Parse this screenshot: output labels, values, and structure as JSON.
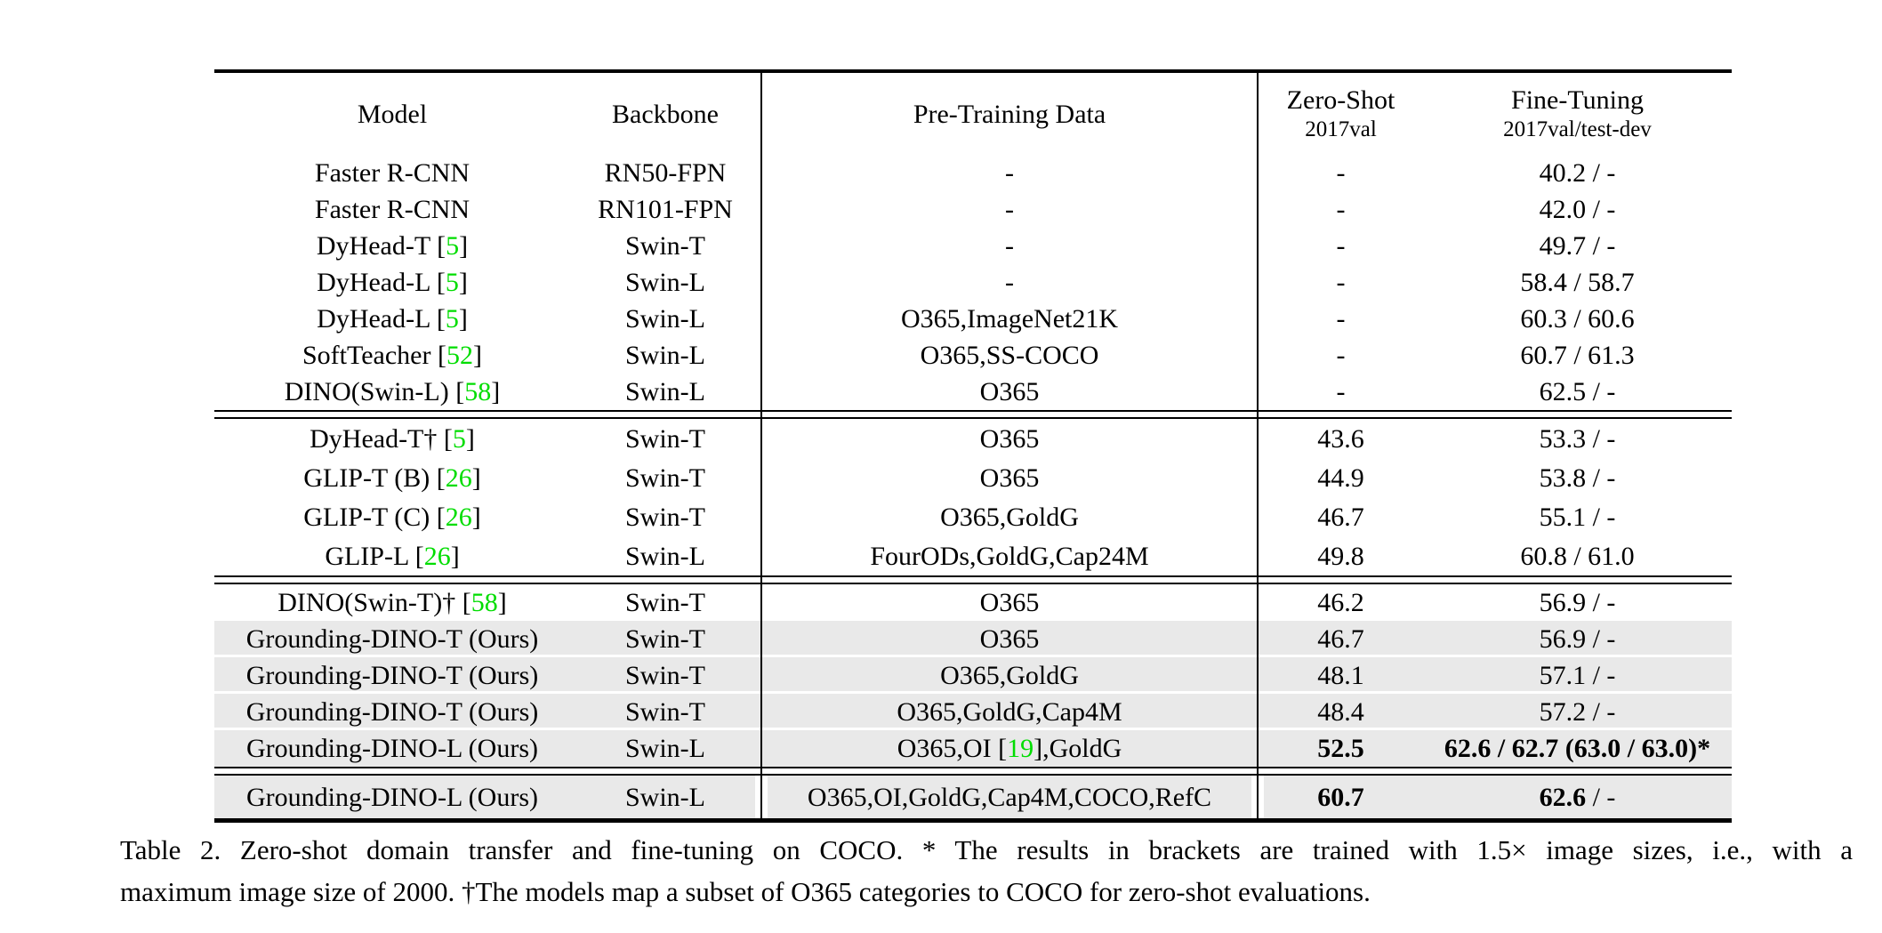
{
  "colors": {
    "citation_green": "#00dd00",
    "row_highlight": "#e9e9e9",
    "text": "#000000",
    "background": "#ffffff"
  },
  "table": {
    "header": {
      "model": "Model",
      "backbone": "Backbone",
      "pretraining": "Pre-Training Data",
      "zeroshot_line1": "Zero-Shot",
      "zeroshot_line2": "2017val",
      "finetuning_line1": "Fine-Tuning",
      "finetuning_line2": "2017val/test-dev"
    },
    "groups": [
      {
        "rows": [
          {
            "model": "Faster R-CNN",
            "backbone": "RN50-FPN",
            "pretrain": "-",
            "zs": "-",
            "ft": "40.2 / -"
          },
          {
            "model": "Faster R-CNN",
            "backbone": "RN101-FPN",
            "pretrain": "-",
            "zs": "-",
            "ft": "42.0 / -"
          },
          {
            "model": "DyHead-T",
            "cite": "5",
            "backbone": "Swin-T",
            "pretrain": "-",
            "zs": "-",
            "ft": "49.7 / -"
          },
          {
            "model": "DyHead-L",
            "cite": "5",
            "backbone": "Swin-L",
            "pretrain": "-",
            "zs": "-",
            "ft": "58.4 / 58.7"
          },
          {
            "model": "DyHead-L",
            "cite": "5",
            "backbone": "Swin-L",
            "pretrain": "O365,ImageNet21K",
            "zs": "-",
            "ft": "60.3 / 60.6"
          },
          {
            "model": "SoftTeacher",
            "cite": "52",
            "backbone": "Swin-L",
            "pretrain": "O365,SS-COCO",
            "zs": "-",
            "ft": "60.7 / 61.3"
          },
          {
            "model": "DINO(Swin-L)",
            "cite": "58",
            "backbone": "Swin-L",
            "pretrain": "O365",
            "zs": "-",
            "ft": "62.5 / -"
          }
        ]
      },
      {
        "rows": [
          {
            "model": "DyHead-T",
            "dagger": true,
            "cite": "5",
            "backbone": "Swin-T",
            "pretrain": "O365",
            "zs": "43.6",
            "ft": "53.3 / -"
          },
          {
            "model": "GLIP-T (B)",
            "cite": "26",
            "backbone": "Swin-T",
            "pretrain": "O365",
            "zs": "44.9",
            "ft": "53.8 / -"
          },
          {
            "model": "GLIP-T (C)",
            "cite": "26",
            "backbone": "Swin-T",
            "pretrain": "O365,GoldG",
            "zs": "46.7",
            "ft": "55.1 / -"
          },
          {
            "model": "GLIP-L",
            "cite": "26",
            "backbone": "Swin-L",
            "pretrain": "FourODs,GoldG,Cap24M",
            "zs": "49.8",
            "ft": "60.8 / 61.0"
          }
        ]
      },
      {
        "rows": [
          {
            "model": "DINO(Swin-T)",
            "dagger": true,
            "cite": "58",
            "backbone": "Swin-T",
            "pretrain": "O365",
            "zs": "46.2",
            "ft": "56.9 / -"
          },
          {
            "model": "Grounding-DINO-T (Ours)",
            "backbone": "Swin-T",
            "pretrain": "O365",
            "zs": "46.7",
            "ft": "56.9 / -",
            "highlight": true
          },
          {
            "model": "Grounding-DINO-T (Ours)",
            "backbone": "Swin-T",
            "pretrain": "O365,GoldG",
            "zs": "48.1",
            "ft": "57.1 / -",
            "highlight": true
          },
          {
            "model": "Grounding-DINO-T (Ours)",
            "backbone": "Swin-T",
            "pretrain": "O365,GoldG,Cap4M",
            "zs": "48.4",
            "ft": "57.2 / -",
            "highlight": true
          },
          {
            "model": "Grounding-DINO-L (Ours)",
            "backbone": "Swin-L",
            "pretrain_before": "O365,OI [",
            "pretrain_cite": "19",
            "pretrain_after": "],GoldG",
            "zs": "52.5",
            "zs_bold": true,
            "ft": "62.6 / 62.7 (63.0 / 63.0)*",
            "ft_rest": "",
            "ft_bold": true,
            "highlight": true
          }
        ]
      },
      {
        "rows": [
          {
            "model": "Grounding-DINO-L (Ours)",
            "backbone": "Swin-L",
            "pretrain": "O365,OI,GoldG,Cap4M,COCO,RefC",
            "zs": "60.7",
            "zs_bold": true,
            "ft": "62.6",
            "ft_rest": " / -",
            "ft_bold": true,
            "highlight": true,
            "final": true
          }
        ]
      }
    ],
    "caption_line1": "Table 2.  Zero-shot domain transfer and fine-tuning on COCO. * The results in brackets are trained with 1.5× image sizes, i.e., with a",
    "caption_line2": "maximum image size of 2000. †The models map a subset of O365 categories to COCO for zero-shot evaluations."
  }
}
